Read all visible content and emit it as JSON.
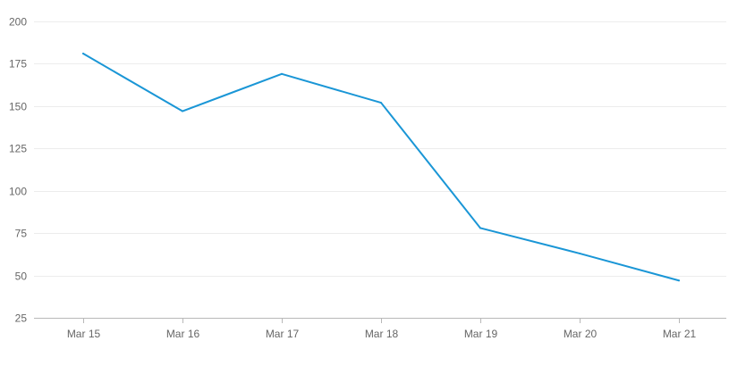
{
  "chart_data": {
    "type": "line",
    "title": "",
    "xlabel": "",
    "ylabel": "",
    "categories": [
      "Mar 15",
      "Mar 16",
      "Mar 17",
      "Mar 18",
      "Mar 19",
      "Mar 20",
      "Mar 21"
    ],
    "series": [
      {
        "values": [
          181,
          147,
          169,
          152,
          78,
          63,
          47
        ],
        "color": "#1a96d6"
      }
    ],
    "ylim": [
      25,
      200
    ],
    "yticks": [
      "200",
      "175",
      "150",
      "125",
      "100",
      "75",
      "50",
      "25"
    ],
    "grid": true,
    "legend": "none"
  }
}
